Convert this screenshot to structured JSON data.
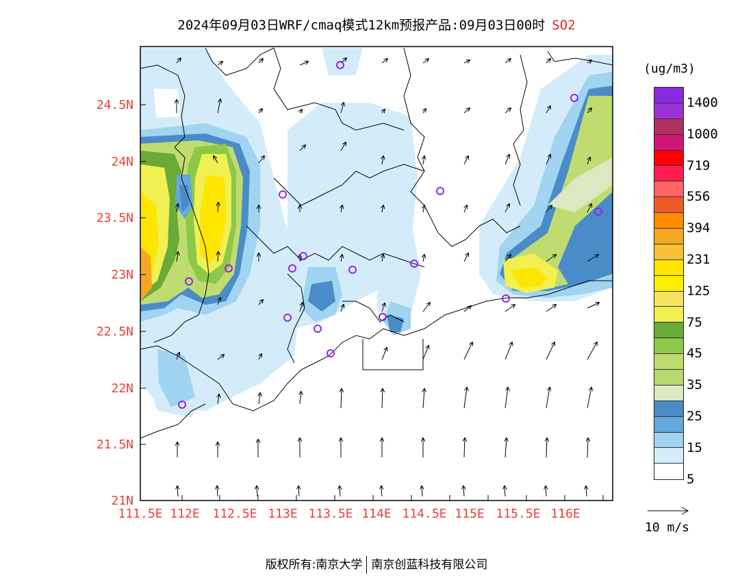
{
  "header": {
    "title": "2024年09月03日WRF/cmaq模式12km预报产品:09月03日00时",
    "pollutant": "SO2"
  },
  "map": {
    "lat_labels": [
      "24.5N",
      "24N",
      "23.5N",
      "23N",
      "22.5N",
      "22N",
      "21.5N",
      "21N"
    ],
    "lon_labels": [
      "111.5E",
      "112E",
      "112.5E",
      "113E",
      "113.5E",
      "114E",
      "114.5E",
      "115E",
      "115.5E",
      "116E"
    ],
    "lat_range": [
      21.0,
      25.0
    ],
    "lon_range": [
      111.5,
      116.5
    ]
  },
  "legend": {
    "unit": "(ug/m3)",
    "colors": [
      "#8a2be2",
      "#9b30d8",
      "#b03060",
      "#d01478",
      "#ff0000",
      "#ff1e50",
      "#ff6464",
      "#f05a28",
      "#ff8c00",
      "#f5a623",
      "#f8c030",
      "#ffe600",
      "#ffee00",
      "#f8e060",
      "#f0f050",
      "#6aaa38",
      "#8cc84a",
      "#c0dc70",
      "#b8d870",
      "#dce8c0",
      "#4a8cc8",
      "#64a8dc",
      "#a0d4f0",
      "#d4ecfa",
      "#ffffff"
    ],
    "labels": [
      "1400",
      "1000",
      "719",
      "556",
      "394",
      "231",
      "125",
      "75",
      "45",
      "35",
      "25",
      "15",
      "5"
    ]
  },
  "wind_reference": {
    "label": "10 m/s"
  },
  "footer": {
    "left": "版权所有:南京大学",
    "right": "南京创蓝科技有限公司"
  }
}
